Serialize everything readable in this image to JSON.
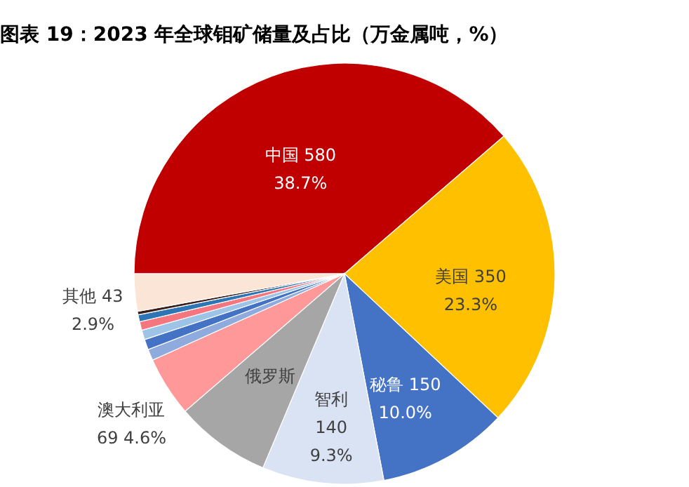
{
  "chart_data": {
    "type": "pie",
    "title": "图表 19：2023 年全球钼矿储量及占比（万金属吨，%）",
    "categories": [
      "中国",
      "美国",
      "秘鲁",
      "智利",
      "俄罗斯",
      "澳大利亚",
      null,
      null,
      null,
      null,
      null,
      null,
      "其他"
    ],
    "values": [
      580,
      350,
      150,
      140,
      110,
      69,
      13,
      12,
      11,
      10,
      8,
      4,
      43
    ],
    "value_labels": [
      "580 38.7%",
      "350 23.3%",
      "150 10.0%",
      "140 9.3%",
      null,
      "69 4.6%",
      null,
      null,
      null,
      null,
      null,
      null,
      "43 2.9%"
    ],
    "colors": [
      "#c00000",
      "#ffc000",
      "#4472c4",
      "#dae3f3",
      "#a6a6a6",
      "#ff9999",
      "#8faadc",
      "#4472c4",
      "#9dc3e6",
      "#f4777f",
      "#2e75b6",
      "#3b1f1f",
      "#fbe5d6"
    ],
    "data_labels": false
  }
}
